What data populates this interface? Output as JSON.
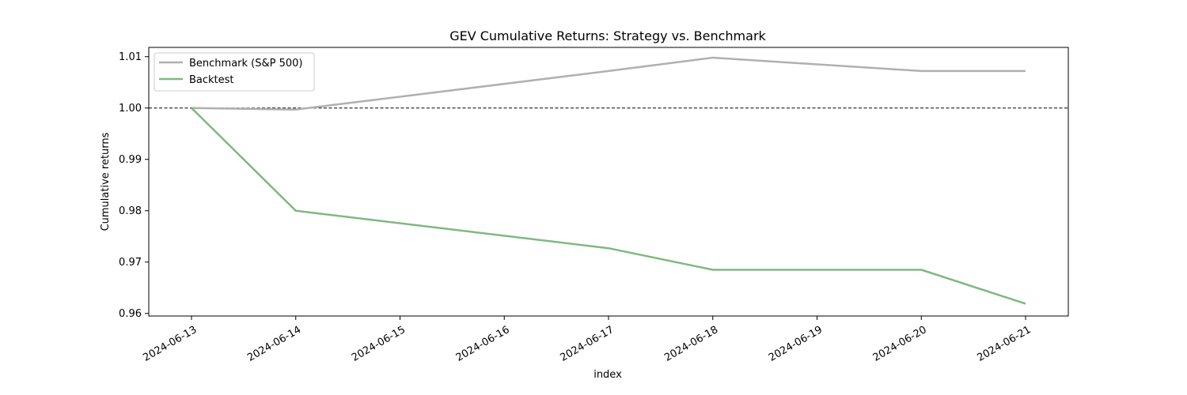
{
  "chart_data": {
    "type": "line",
    "title": "GEV Cumulative Returns: Strategy vs. Benchmark",
    "xlabel": "index",
    "ylabel": "Cumulative returns",
    "x_ticks": [
      "2024-06-13",
      "2024-06-14",
      "2024-06-15",
      "2024-06-16",
      "2024-06-17",
      "2024-06-18",
      "2024-06-19",
      "2024-06-20",
      "2024-06-21"
    ],
    "y_ticks": [
      "0.96",
      "0.97",
      "0.98",
      "0.99",
      "1.00",
      "1.01"
    ],
    "xlim": [
      "2024-06-12T14:10",
      "2024-06-21T09:50"
    ],
    "ylim": [
      0.9595,
      1.0118
    ],
    "reference_line": {
      "y": 1.0,
      "style": "dashed",
      "color": "#000000"
    },
    "grid": false,
    "legend_position": "upper-left",
    "series": [
      {
        "name": "Benchmark (S&P 500)",
        "color": "#b0b0b0",
        "x": [
          "2024-06-13",
          "2024-06-14",
          "2024-06-17",
          "2024-06-18",
          "2024-06-20",
          "2024-06-21"
        ],
        "y": [
          1.0,
          0.9997,
          1.0072,
          1.0098,
          1.0072,
          1.0072
        ]
      },
      {
        "name": "Backtest",
        "color": "#80b880",
        "x": [
          "2024-06-13",
          "2024-06-14",
          "2024-06-17",
          "2024-06-18",
          "2024-06-20",
          "2024-06-21"
        ],
        "y": [
          1.0,
          0.98,
          0.9727,
          0.9685,
          0.9685,
          0.9619
        ]
      }
    ]
  }
}
